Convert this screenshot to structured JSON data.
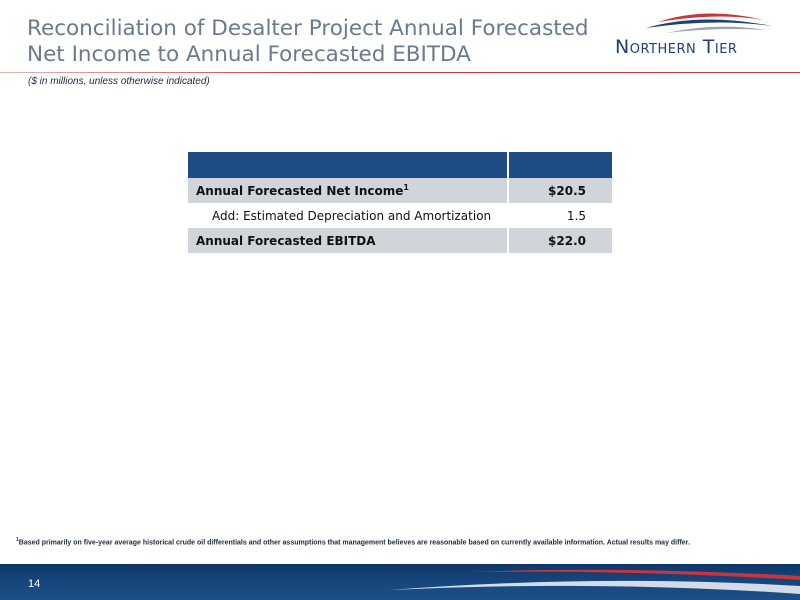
{
  "header": {
    "title_line1": "Reconciliation of Desalter Project Annual Forecasted",
    "title_line2": "Net Income to Annual Forecasted EBITDA",
    "subtitle": "($ in millions, unless otherwise indicated)"
  },
  "logo": {
    "text": "Northern Tier",
    "icon": "swoosh-logo-icon"
  },
  "table": {
    "rows": [
      {
        "label": "Annual Forecasted Net Income",
        "superscript": "1",
        "value": "$20.5"
      },
      {
        "label": "Add: Estimated Depreciation and Amortization",
        "value": "1.5"
      },
      {
        "label": "Annual Forecasted EBITDA",
        "value": "$22.0"
      }
    ]
  },
  "footnote": {
    "marker": "1",
    "text": "Based primarily on five-year  average historical crude oil differentials and other assumptions that management believes are reasonable based on currently available information.  Actual results may differ."
  },
  "footer": {
    "page_number": "14"
  },
  "colors": {
    "title": "#6b7a8c",
    "brand_blue": "#1f4b85",
    "accent_red": "#c8363c",
    "row_shade": "#d0d5db"
  }
}
